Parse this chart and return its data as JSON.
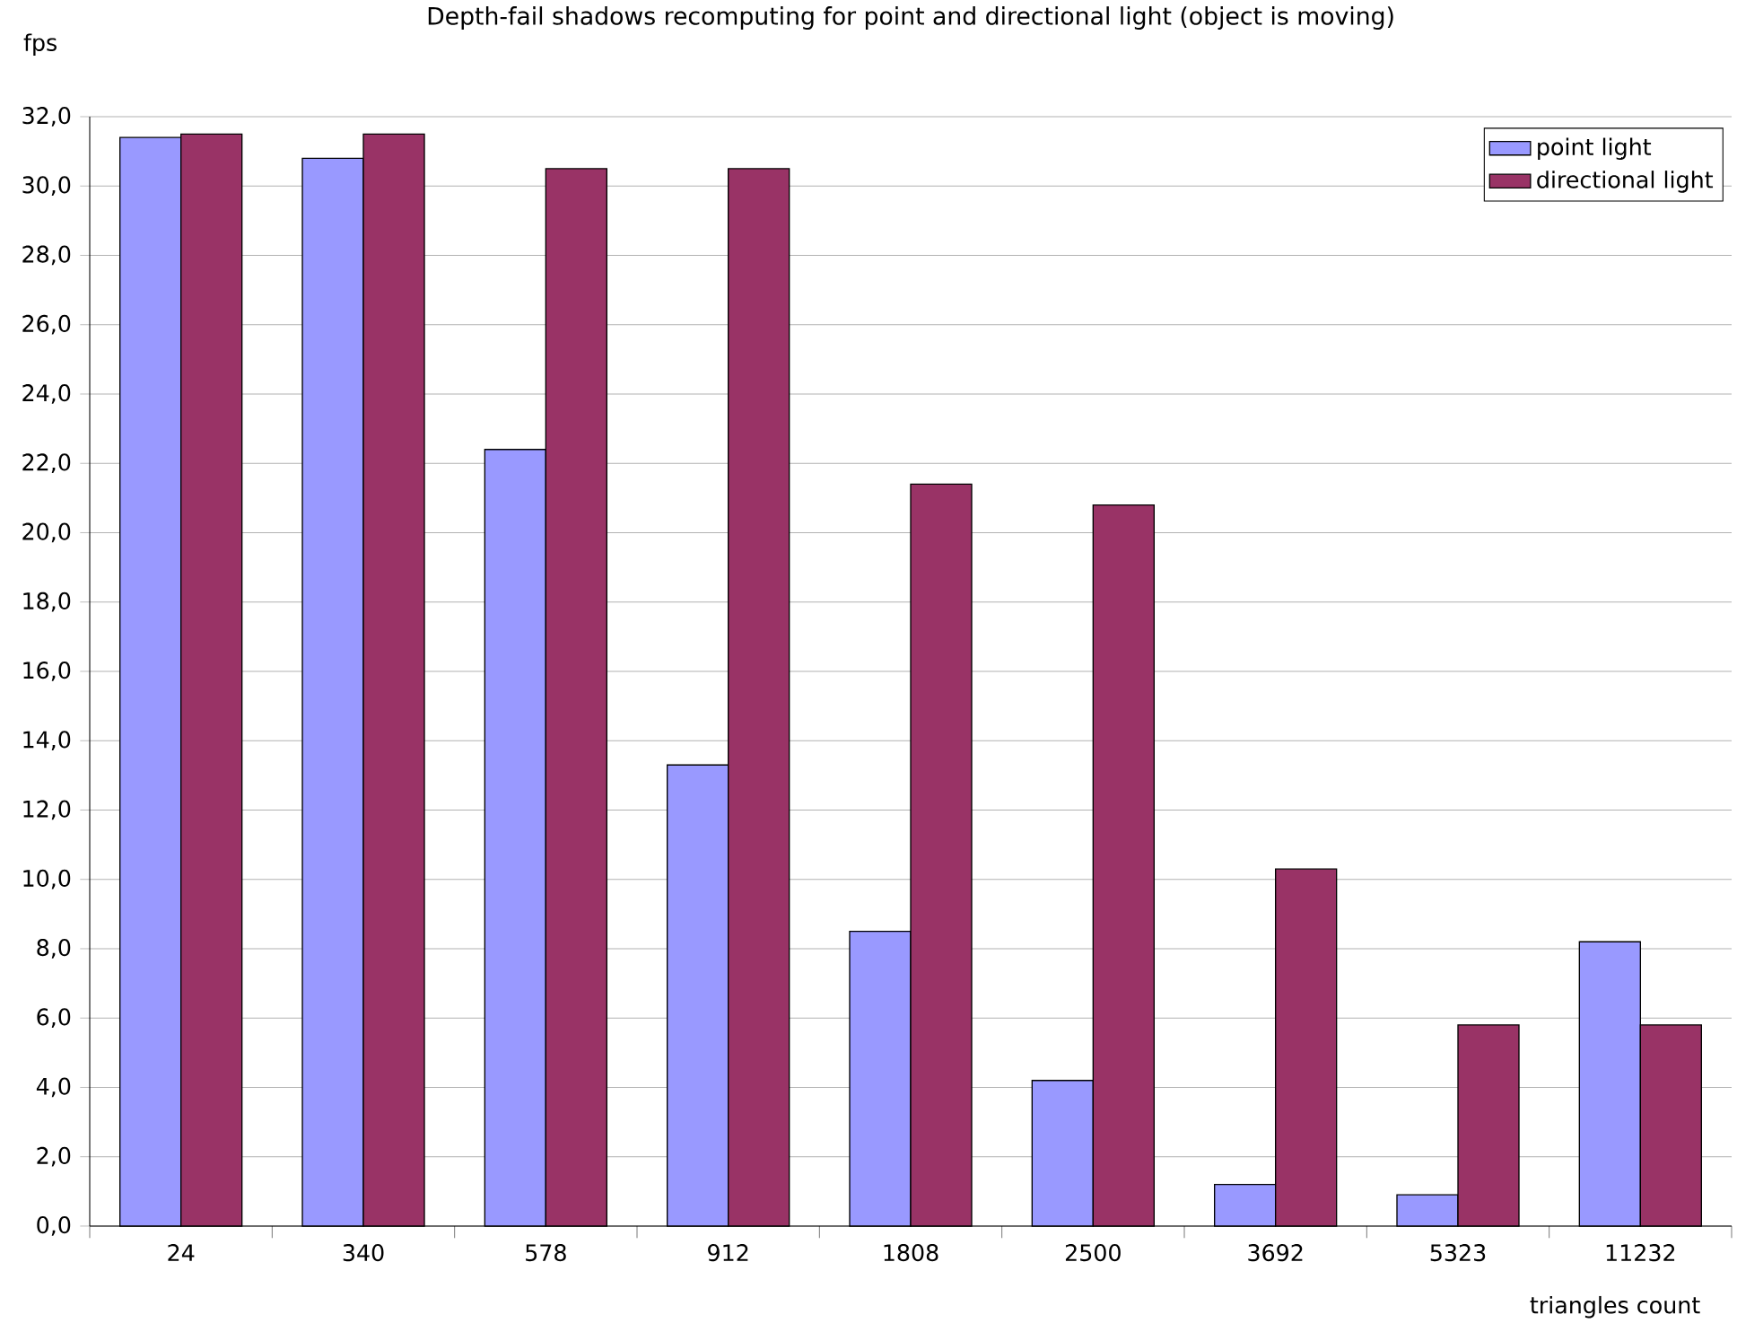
{
  "chart_data": {
    "type": "bar",
    "title": "Depth-fail shadows recomputing for point and directional light (object is moving)",
    "xlabel": "triangles count",
    "ylabel": "fps",
    "categories": [
      "24",
      "340",
      "578",
      "912",
      "1808",
      "2500",
      "3692",
      "5323",
      "11232"
    ],
    "series": [
      {
        "name": "point light",
        "color": "#9999ff",
        "values": [
          31.4,
          30.8,
          22.4,
          13.3,
          8.5,
          4.2,
          1.2,
          0.9,
          8.2
        ]
      },
      {
        "name": "directional light",
        "color": "#993366",
        "values": [
          31.5,
          31.5,
          30.5,
          30.5,
          21.4,
          20.8,
          10.3,
          5.8,
          5.8
        ]
      }
    ],
    "ylim": [
      0,
      32
    ],
    "yticks": [
      {
        "value": 0,
        "label": "0,0"
      },
      {
        "value": 2,
        "label": "2,0"
      },
      {
        "value": 4,
        "label": "4,0"
      },
      {
        "value": 6,
        "label": "6,0"
      },
      {
        "value": 8,
        "label": "8,0"
      },
      {
        "value": 10,
        "label": "10,0"
      },
      {
        "value": 12,
        "label": "12,0"
      },
      {
        "value": 14,
        "label": "14,0"
      },
      {
        "value": 16,
        "label": "16,0"
      },
      {
        "value": 18,
        "label": "18,0"
      },
      {
        "value": 20,
        "label": "20,0"
      },
      {
        "value": 22,
        "label": "22,0"
      },
      {
        "value": 24,
        "label": "24,0"
      },
      {
        "value": 26,
        "label": "26,0"
      },
      {
        "value": 28,
        "label": "28,0"
      },
      {
        "value": 30,
        "label": "30,0"
      },
      {
        "value": 32,
        "label": "32,0"
      }
    ],
    "grid": "y",
    "legend": "top right"
  }
}
